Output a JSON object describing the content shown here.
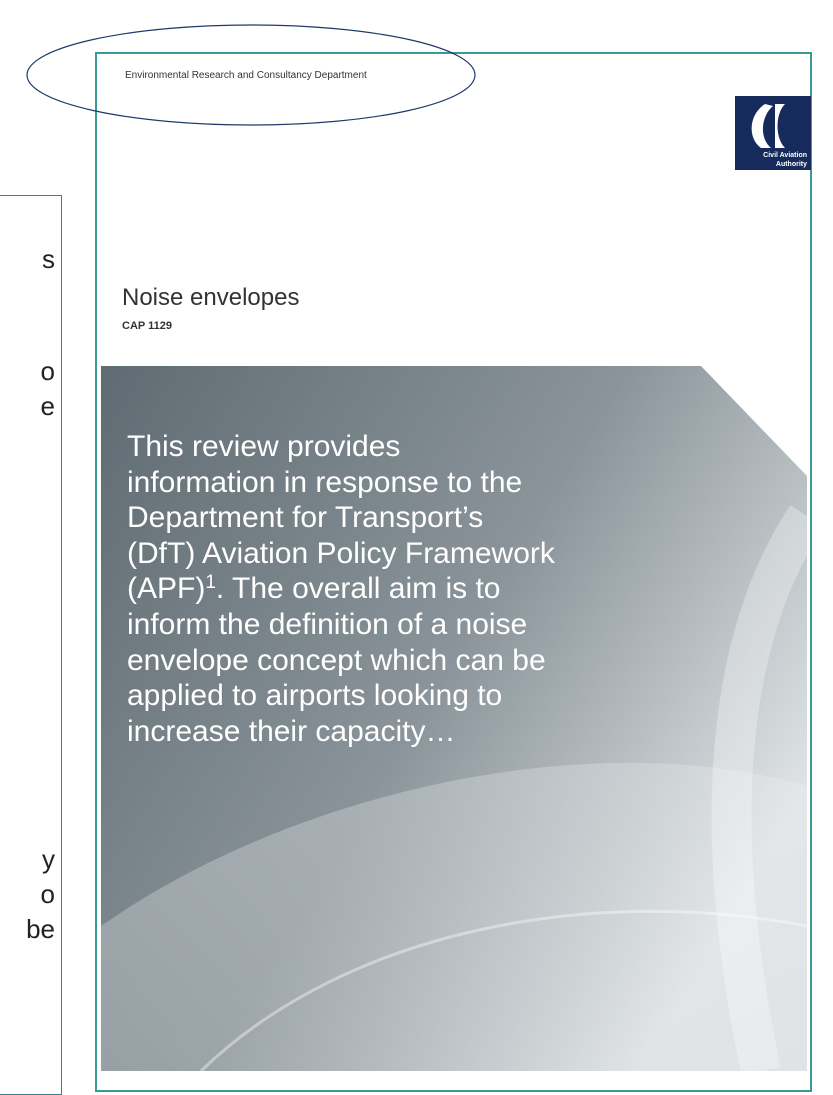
{
  "left_panel": {
    "fragments": [
      "s",
      "o",
      "e",
      "y",
      "o",
      "be"
    ]
  },
  "document": {
    "department": "Environmental Research and Consultancy Department",
    "logo": {
      "line1": "Civil Aviation",
      "line2": "Authority"
    },
    "title": "Noise envelopes",
    "code": "CAP 1129",
    "body": {
      "lines_before": [
        "This review provides",
        "information in response to the",
        "Department for Transport’s",
        "(DfT) Aviation Policy Framework"
      ],
      "sup_line": {
        "text": "(APF)",
        "sup": "1",
        "rest": ". The overall aim is to"
      },
      "lines_after": [
        "inform the definition of a noise",
        "envelope concept which can be",
        "applied to airports looking to",
        "increase their capacity…"
      ]
    }
  }
}
